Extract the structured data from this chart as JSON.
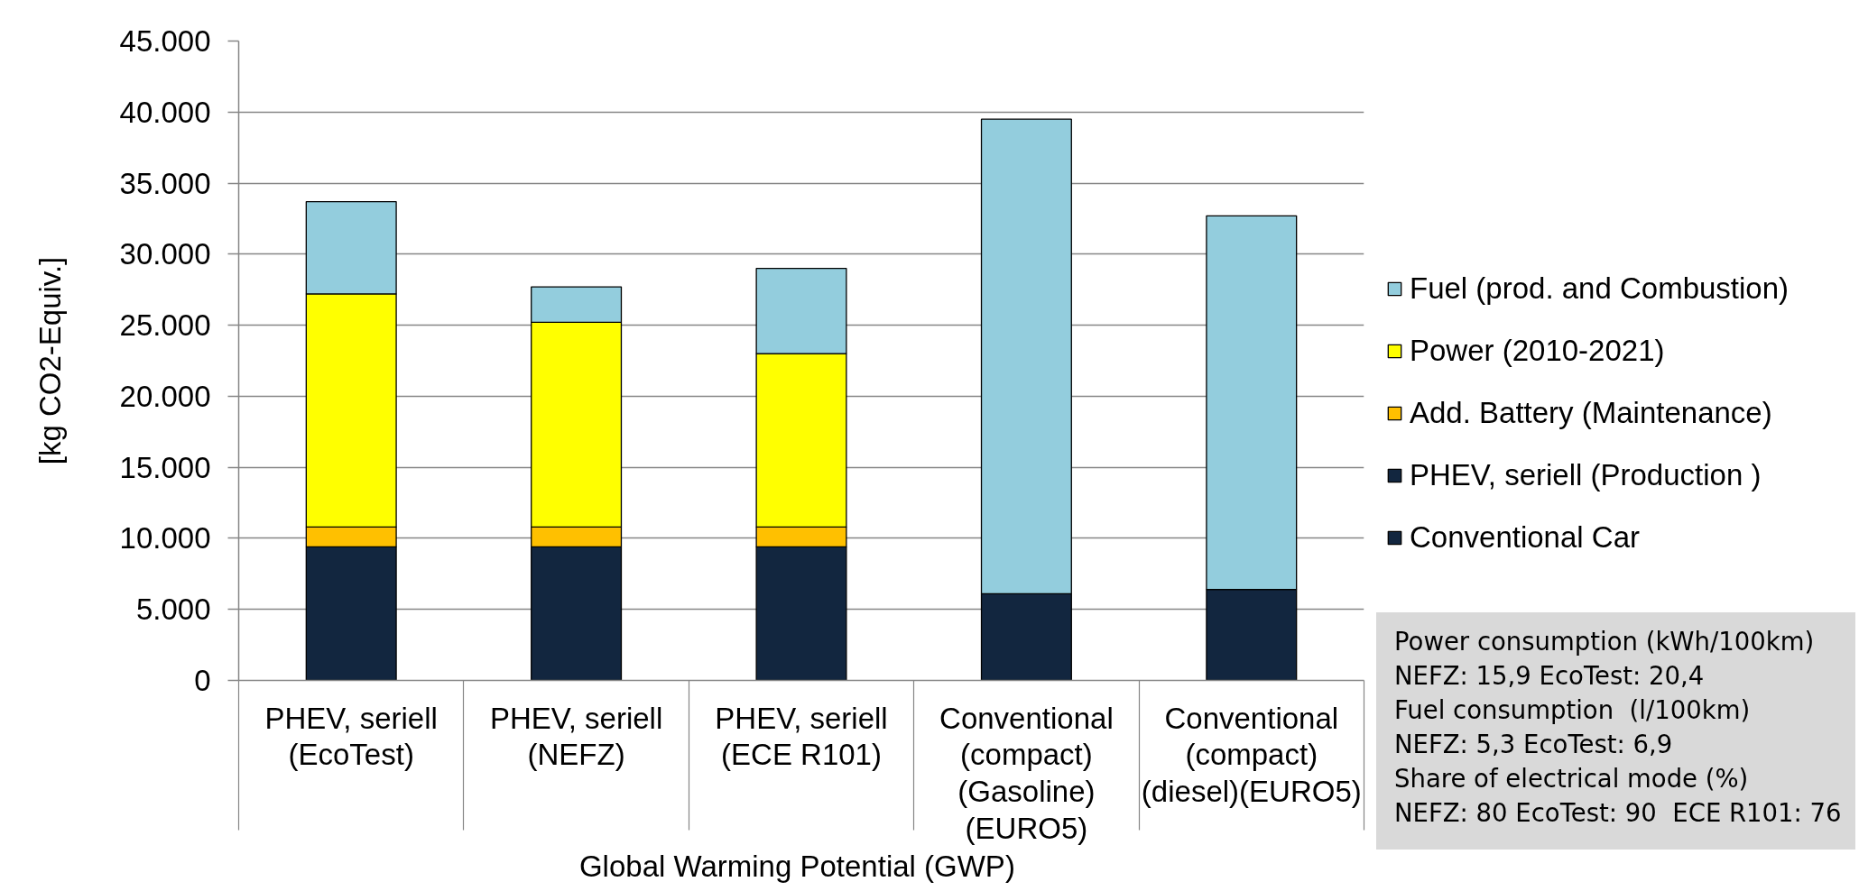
{
  "chart_data": {
    "type": "bar",
    "stacked": true,
    "categories": [
      "PHEV, seriell\n(EcoTest)",
      "PHEV, seriell\n(NEFZ)",
      "PHEV, seriell\n(ECE R101)",
      "Conventional\n(compact)\n(Gasoline)\n(EURO5)",
      "Conventional\n(compact)\n(diesel)(EURO5)"
    ],
    "series": [
      {
        "name": "Conventional Car",
        "color": "#12263f",
        "values": [
          null,
          null,
          null,
          6100,
          6400
        ]
      },
      {
        "name": "PHEV, seriell (Production )",
        "color": "#12263f",
        "values": [
          9400,
          9400,
          9400,
          null,
          null
        ]
      },
      {
        "name": "Add. Battery (Maintenance)",
        "color": "#ffc000",
        "values": [
          1400,
          1400,
          1400,
          null,
          null
        ]
      },
      {
        "name": "Power (2010-2021)",
        "color": "#ffff00",
        "values": [
          16400,
          14400,
          12200,
          null,
          null
        ]
      },
      {
        "name": "Fuel (prod. and Combustion)",
        "color": "#93cddd",
        "values": [
          6500,
          2500,
          6000,
          33400,
          26300
        ]
      }
    ],
    "xlabel": "Global Warming Potential  (GWP)",
    "ylabel": "[kg CO2-Equiv.]",
    "ylim": [
      0,
      45000
    ],
    "yticks": [
      0,
      {
        "value": 5000,
        "label": "5.000"
      },
      {
        "value": 10000,
        "label": "10.000"
      },
      {
        "value": 15000,
        "label": "15.000"
      },
      {
        "value": 20000,
        "label": "20.000"
      },
      {
        "value": 25000,
        "label": "25.000"
      },
      {
        "value": 30000,
        "label": "30.000"
      },
      {
        "value": 35000,
        "label": "35.000"
      },
      {
        "value": 40000,
        "label": "40.000"
      },
      {
        "value": 45000,
        "label": "45.000"
      }
    ],
    "grid": "y",
    "legend": "right",
    "annotations": [
      "Power consumption (kWh/100km)",
      "NEFZ: 15,9 EcoTest: 20,4",
      "Fuel consumption  (l/100km)",
      "NEFZ: 5,3 EcoTest: 6,9",
      "Share of electrical mode (%)",
      "NEFZ: 80 EcoTest: 90  ECE R101: 76"
    ]
  }
}
